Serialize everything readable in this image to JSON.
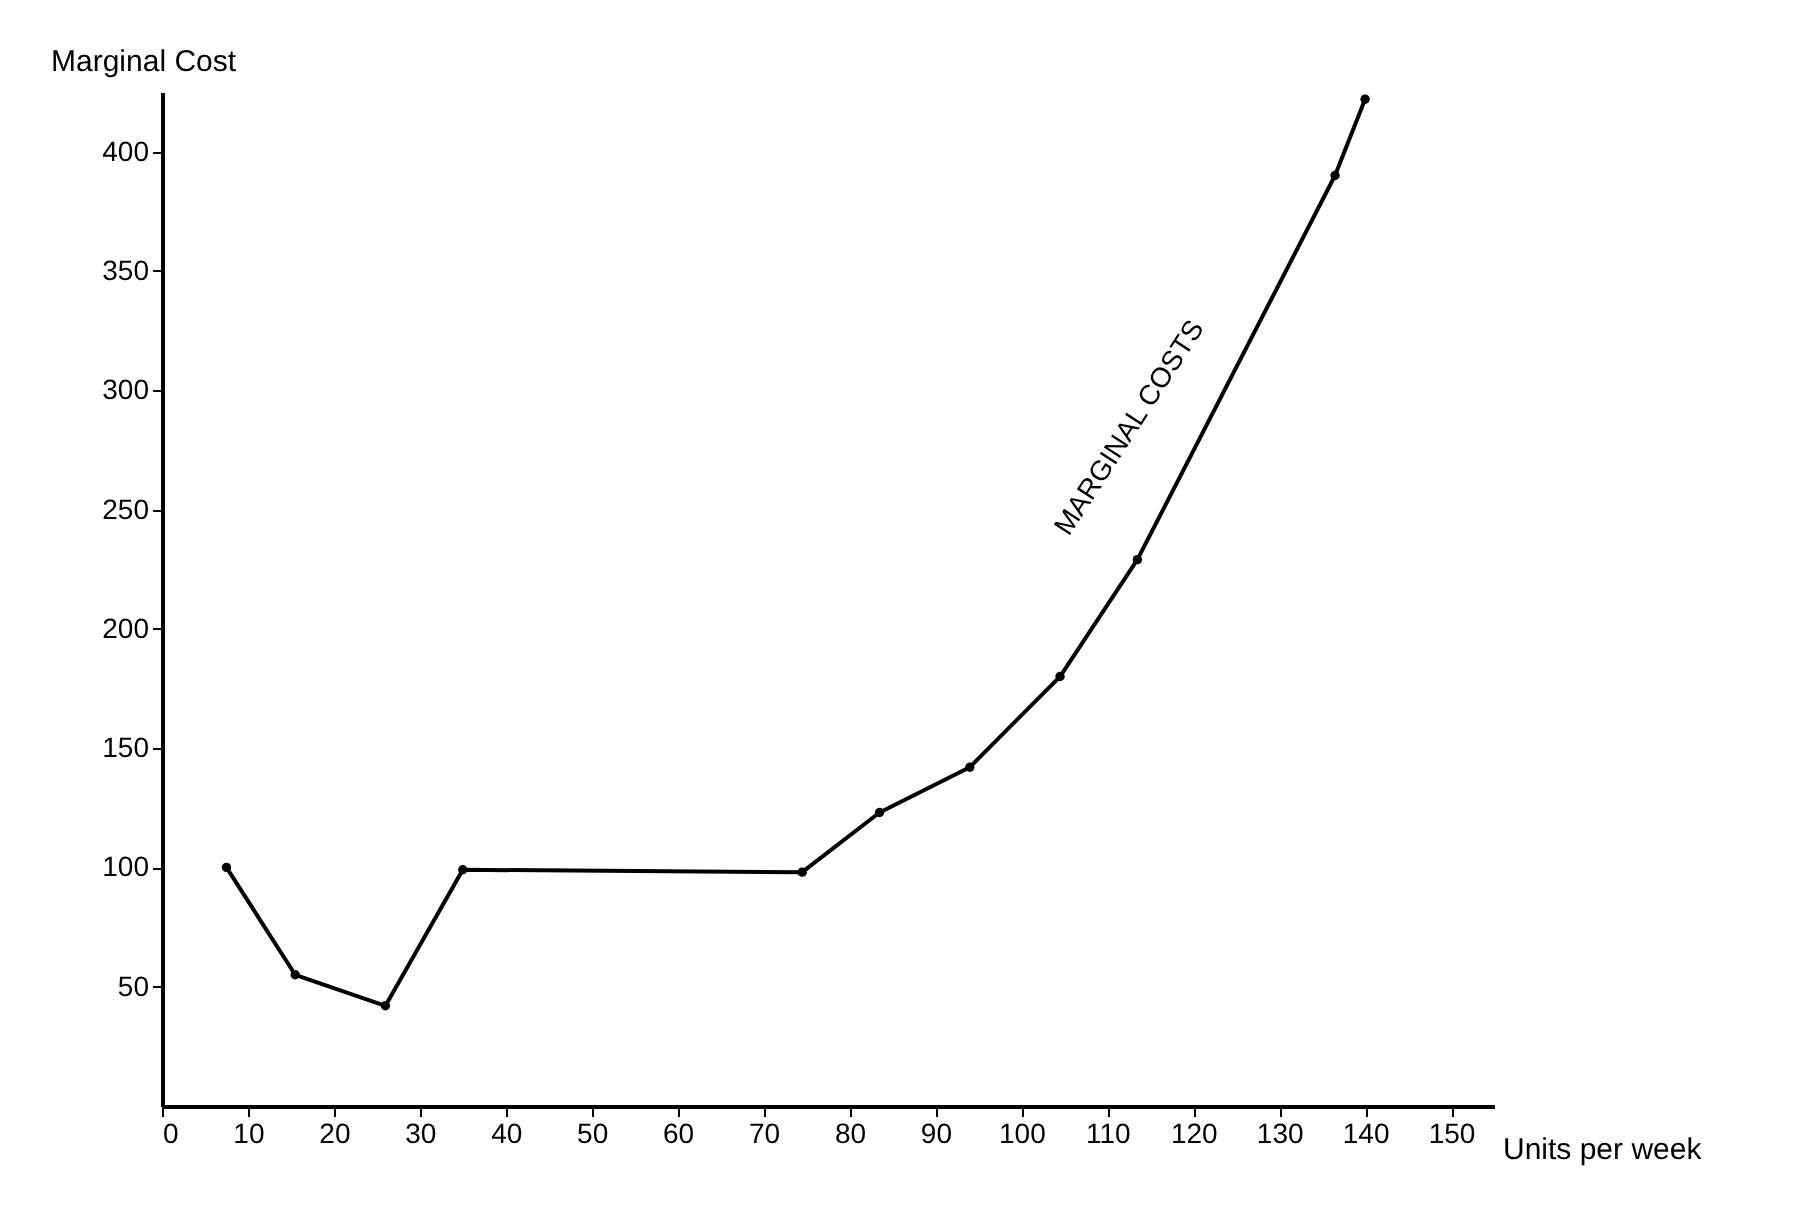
{
  "chart_data": {
    "type": "line",
    "xlabel": "Units per week",
    "ylabel": "Marginal Cost",
    "x": [
      7.5,
      15.5,
      26,
      35,
      74.5,
      83.5,
      94,
      104.5,
      113.5,
      136.5,
      140
    ],
    "series": [
      {
        "color": "#000000",
        "values": [
          100,
          55,
          42,
          99,
          98,
          123,
          142,
          180,
          229,
          390,
          422
        ]
      }
    ],
    "xlim": [
      0,
      155
    ],
    "xticks": [
      0,
      10,
      20,
      30,
      40,
      50,
      60,
      70,
      80,
      90,
      100,
      110,
      120,
      130,
      140,
      150
    ],
    "ylim": [
      0,
      425
    ],
    "yticks": [
      50,
      100,
      150,
      200,
      250,
      300,
      350,
      400
    ],
    "grid": false,
    "marker": "circle",
    "line_style": "solid",
    "annotations": [
      "MARGINAL COSTS"
    ]
  }
}
